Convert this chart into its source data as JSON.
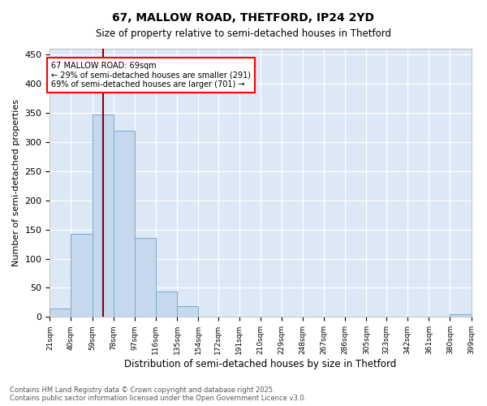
{
  "title_line1": "67, MALLOW ROAD, THETFORD, IP24 2YD",
  "title_line2": "Size of property relative to semi-detached houses in Thetford",
  "xlabel": "Distribution of semi-detached houses by size in Thetford",
  "ylabel": "Number of semi-detached properties",
  "bar_color": "#c5d8ed",
  "bar_edge_color": "#7aaccc",
  "background_color": "#dce8f5",
  "annotation_text": "67 MALLOW ROAD: 69sqm\n← 29% of semi-detached houses are smaller (291)\n69% of semi-detached houses are larger (701) →",
  "vline_x": 69,
  "vline_color": "#8b0000",
  "bins": [
    21,
    40,
    59,
    78,
    97,
    116,
    135,
    154,
    172,
    191,
    210,
    229,
    248,
    267,
    286,
    305,
    323,
    342,
    361,
    380,
    399
  ],
  "values": [
    14,
    143,
    347,
    320,
    135,
    43,
    19,
    0,
    0,
    0,
    0,
    0,
    0,
    0,
    0,
    0,
    0,
    0,
    0,
    5,
    0
  ],
  "tick_labels": [
    "21sqm",
    "40sqm",
    "59sqm",
    "78sqm",
    "97sqm",
    "116sqm",
    "135sqm",
    "154sqm",
    "172sqm",
    "191sqm",
    "210sqm",
    "229sqm",
    "248sqm",
    "267sqm",
    "286sqm",
    "305sqm",
    "323sqm",
    "342sqm",
    "361sqm",
    "380sqm",
    "399sqm"
  ],
  "ylim": [
    0,
    460
  ],
  "yticks": [
    0,
    50,
    100,
    150,
    200,
    250,
    300,
    350,
    400,
    450
  ],
  "footer": "Contains HM Land Registry data © Crown copyright and database right 2025.\nContains public sector information licensed under the Open Government Licence v3.0."
}
